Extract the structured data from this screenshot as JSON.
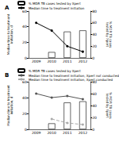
{
  "chart_data": [
    {
      "type": "bar",
      "title": "A",
      "legend": "upper left",
      "categories": [
        "2009",
        "2010",
        "2011",
        "2012"
      ],
      "y_label": "Median time to treatment\ninitiation, d",
      "y2_label": "% MDR TB cases\ntested by Xpert",
      "ylim": [
        0,
        60
      ],
      "yticks": [
        0,
        20,
        40,
        60
      ],
      "y2lim": [
        0,
        80
      ],
      "y2ticks": [
        0,
        20,
        40,
        60,
        80
      ],
      "series": [
        {
          "name": "% MDR TB cases tested by Xpert",
          "type": "bar",
          "axis": "y2",
          "color": "#ffffff",
          "values": [
            null,
            10,
            45,
            47
          ]
        },
        {
          "name": "Median time to treatment initiation",
          "type": "line",
          "color": "#000000",
          "marker": "circle",
          "line_style": "solid",
          "values": [
            45,
            35,
            15,
            8
          ]
        }
      ]
    },
    {
      "type": "bar",
      "title": "B",
      "legend": "upper left",
      "categories": [
        "2009",
        "2010",
        "2011",
        "2012"
      ],
      "y_label": "Median time to treatment\ninitiation, d",
      "y2_label": "% MDR TB cases\ntested by Xpert",
      "ylim": [
        0,
        60
      ],
      "yticks": [
        0,
        20,
        40,
        60
      ],
      "y2lim": [
        0,
        80
      ],
      "y2ticks": [
        0,
        20,
        40,
        60,
        80
      ],
      "series": [
        {
          "name": "% MDR TB cases tested by Xpert",
          "type": "bar",
          "axis": "y2",
          "color": "#ffffff",
          "values": [
            null,
            10,
            45,
            47
          ]
        },
        {
          "name": "Median time to treatment initiation, Xpert not conducted",
          "type": "line",
          "color": "#555555",
          "marker": "circle",
          "line_style": "solid",
          "values": [
            45,
            40,
            42,
            38
          ]
        },
        {
          "name": "Median time to treatment initiation, Xpert conducted",
          "type": "line",
          "color": "#aaaaaa",
          "marker": "circle",
          "line_style": "dashed",
          "values": [
            null,
            13,
            8,
            6
          ]
        }
      ]
    }
  ]
}
